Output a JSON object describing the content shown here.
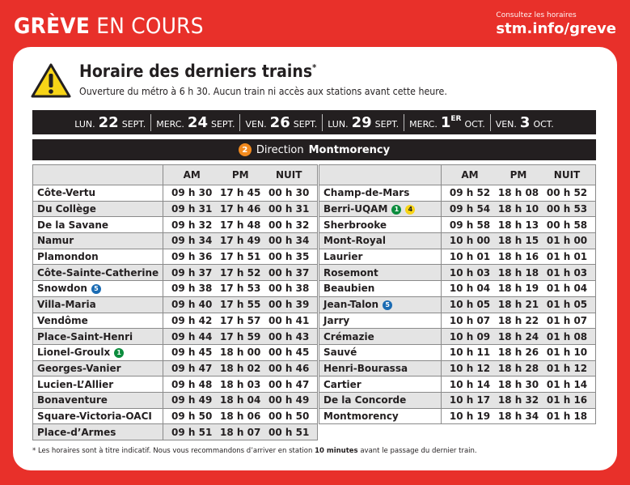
{
  "header": {
    "title_bold": "GRÈVE",
    "title_light": "EN COURS",
    "link_caption": "Consultez les horaires",
    "link_url": "stm.info/greve"
  },
  "notice": {
    "icon": "warning-icon",
    "title": "Horaire des derniers trains",
    "title_mark": "*",
    "subtitle": "Ouverture du métro à 6 h 30. Aucun train ni accès aux stations avant cette heure."
  },
  "dates": [
    {
      "day": "LUN.",
      "num": "22",
      "sup": "",
      "month": "SEPT."
    },
    {
      "day": "MERC.",
      "num": "24",
      "sup": "",
      "month": "SEPT."
    },
    {
      "day": "VEN.",
      "num": "26",
      "sup": "",
      "month": "SEPT."
    },
    {
      "day": "LUN.",
      "num": "29",
      "sup": "",
      "month": "SEPT."
    },
    {
      "day": "MERC.",
      "num": "1",
      "sup": "ER",
      "month": "OCT."
    },
    {
      "day": "VEN.",
      "num": "3",
      "sup": "",
      "month": "OCT."
    }
  ],
  "direction": {
    "line_number": "2",
    "line_color": "#f28a1e",
    "label": "Direction",
    "terminus": "Montmorency"
  },
  "columns": [
    "AM",
    "PM",
    "NUIT"
  ],
  "left_table": [
    {
      "station": "Côte-Vertu",
      "badges": [],
      "am": "09 h 30",
      "pm": "17 h 45",
      "nuit": "00 h 30"
    },
    {
      "station": "Du Collège",
      "badges": [],
      "am": "09 h 31",
      "pm": "17 h 46",
      "nuit": "00 h 31"
    },
    {
      "station": "De la Savane",
      "badges": [],
      "am": "09 h 32",
      "pm": "17 h 48",
      "nuit": "00 h 32"
    },
    {
      "station": "Namur",
      "badges": [],
      "am": "09 h 34",
      "pm": "17 h 49",
      "nuit": "00 h 34"
    },
    {
      "station": "Plamondon",
      "badges": [],
      "am": "09 h 36",
      "pm": "17 h 51",
      "nuit": "00 h 35"
    },
    {
      "station": "Côte-Sainte-Catherine",
      "badges": [],
      "am": "09 h 37",
      "pm": "17 h 52",
      "nuit": "00 h 37"
    },
    {
      "station": "Snowdon",
      "badges": [
        {
          "num": "5",
          "color": "blue"
        }
      ],
      "am": "09 h 38",
      "pm": "17 h 53",
      "nuit": "00 h 38"
    },
    {
      "station": "Villa-Maria",
      "badges": [],
      "am": "09 h 40",
      "pm": "17 h 55",
      "nuit": "00 h 39"
    },
    {
      "station": "Vendôme",
      "badges": [],
      "am": "09 h 42",
      "pm": "17 h 57",
      "nuit": "00 h 41"
    },
    {
      "station": "Place-Saint-Henri",
      "badges": [],
      "am": "09 h 44",
      "pm": "17 h 59",
      "nuit": "00 h 43"
    },
    {
      "station": "Lionel-Groulx",
      "badges": [
        {
          "num": "1",
          "color": "green"
        }
      ],
      "am": "09 h 45",
      "pm": "18 h 00",
      "nuit": "00 h 45"
    },
    {
      "station": "Georges-Vanier",
      "badges": [],
      "am": "09 h 47",
      "pm": "18 h 02",
      "nuit": "00 h 46"
    },
    {
      "station": "Lucien-L’Allier",
      "badges": [],
      "am": "09 h 48",
      "pm": "18 h 03",
      "nuit": "00 h 47"
    },
    {
      "station": "Bonaventure",
      "badges": [],
      "am": "09 h 49",
      "pm": "18 h 04",
      "nuit": "00 h 49"
    },
    {
      "station": "Square-Victoria-OACI",
      "badges": [],
      "am": "09 h 50",
      "pm": "18 h 06",
      "nuit": "00 h 50"
    },
    {
      "station": "Place-d’Armes",
      "badges": [],
      "am": "09 h 51",
      "pm": "18 h 07",
      "nuit": "00 h 51"
    }
  ],
  "right_table": [
    {
      "station": "Champ-de-Mars",
      "badges": [],
      "am": "09 h 52",
      "pm": "18 h 08",
      "nuit": "00 h 52"
    },
    {
      "station": "Berri-UQAM",
      "badges": [
        {
          "num": "1",
          "color": "green"
        },
        {
          "num": "4",
          "color": "yellow"
        }
      ],
      "am": "09 h 54",
      "pm": "18 h 10",
      "nuit": "00 h 53"
    },
    {
      "station": "Sherbrooke",
      "badges": [],
      "am": "09 h 58",
      "pm": "18 h 13",
      "nuit": "00 h 58"
    },
    {
      "station": "Mont-Royal",
      "badges": [],
      "am": "10 h 00",
      "pm": "18 h 15",
      "nuit": "01 h 00"
    },
    {
      "station": "Laurier",
      "badges": [],
      "am": "10 h 01",
      "pm": "18 h 16",
      "nuit": "01 h 01"
    },
    {
      "station": "Rosemont",
      "badges": [],
      "am": "10 h 03",
      "pm": "18 h 18",
      "nuit": "01 h 03"
    },
    {
      "station": "Beaubien",
      "badges": [],
      "am": "10 h 04",
      "pm": "18 h 19",
      "nuit": "01 h 04"
    },
    {
      "station": "Jean-Talon",
      "badges": [
        {
          "num": "5",
          "color": "blue"
        }
      ],
      "am": "10 h 05",
      "pm": "18 h 21",
      "nuit": "01 h 05"
    },
    {
      "station": "Jarry",
      "badges": [],
      "am": "10 h 07",
      "pm": "18 h 22",
      "nuit": "01 h 07"
    },
    {
      "station": "Crémazie",
      "badges": [],
      "am": "10 h 09",
      "pm": "18 h 24",
      "nuit": "01 h 08"
    },
    {
      "station": "Sauvé",
      "badges": [],
      "am": "10 h 11",
      "pm": "18 h 26",
      "nuit": "01 h 10"
    },
    {
      "station": "Henri-Bourassa",
      "badges": [],
      "am": "10 h 12",
      "pm": "18 h 28",
      "nuit": "01 h 12"
    },
    {
      "station": "Cartier",
      "badges": [],
      "am": "10 h 14",
      "pm": "18 h 30",
      "nuit": "01 h 14"
    },
    {
      "station": "De la Concorde",
      "badges": [],
      "am": "10 h 17",
      "pm": "18 h 32",
      "nuit": "01 h 16"
    },
    {
      "station": "Montmorency",
      "badges": [],
      "am": "10 h 19",
      "pm": "18 h 34",
      "nuit": "01 h 18"
    }
  ],
  "footnote": {
    "before": "* Les horaires sont à titre indicatif. Nous vous recommandons d’arriver en station ",
    "bold": "10 minutes",
    "after": " avant le passage du dernier train."
  },
  "colors": {
    "brand_red": "#e8302a",
    "dark": "#231f20",
    "row_shade": "#e4e4e4",
    "line_orange": "#f28a1e",
    "line_green": "#0b8c3d",
    "line_blue": "#1a6bb3",
    "line_yellow": "#f7d417"
  }
}
